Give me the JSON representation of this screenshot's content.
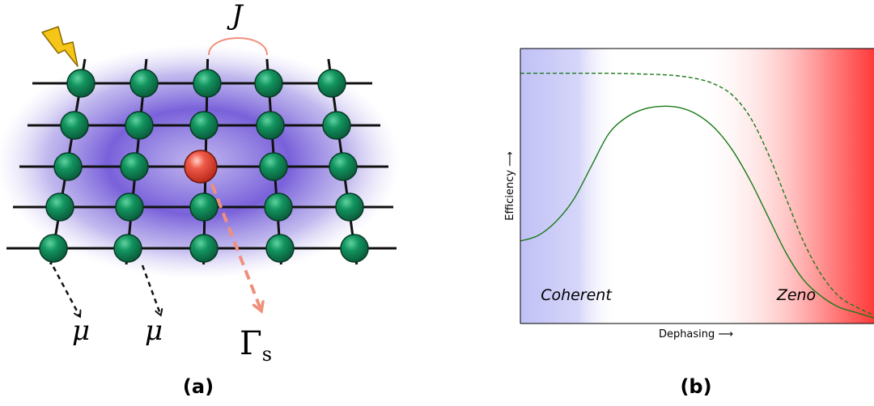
{
  "panel_a": {
    "caption": "(a)",
    "coupling_label": "J",
    "loss_label_1": "μ",
    "loss_label_2": "μ",
    "sink_label_main": "Γ",
    "sink_label_sub": "s",
    "colors": {
      "glow": "#6a4fd6",
      "node": "#0f8a5c",
      "sink_node": "#e8463a",
      "sink_arrow": "#f0907a",
      "coupling_arc": "#f0907a",
      "lightning": "#f5c518"
    },
    "lattice": {
      "rows": 5,
      "columns": 5
    }
  },
  "panel_b": {
    "caption": "(b)",
    "chart_data": {
      "type": "line",
      "xlabel": "Dephasing ⟶",
      "ylabel": "Efficiency ⟶",
      "regions": [
        {
          "text": "Coherent",
          "color": "#c8c8f8"
        },
        {
          "text": "Zeno",
          "color": "#ff6060"
        }
      ],
      "x": [
        0.0,
        0.05,
        0.1,
        0.15,
        0.2,
        0.25,
        0.3,
        0.35,
        0.4,
        0.45,
        0.5,
        0.55,
        0.6,
        0.65,
        0.7,
        0.75,
        0.8,
        0.85,
        0.9,
        0.95,
        1.0
      ],
      "series": [
        {
          "style": "dashed",
          "color": "#1a7a1a",
          "values": [
            0.91,
            0.91,
            0.91,
            0.91,
            0.91,
            0.91,
            0.909,
            0.907,
            0.905,
            0.9,
            0.89,
            0.87,
            0.83,
            0.75,
            0.62,
            0.46,
            0.3,
            0.18,
            0.1,
            0.06,
            0.03
          ]
        },
        {
          "style": "solid",
          "color": "#1a7a1a",
          "values": [
            0.3,
            0.32,
            0.37,
            0.45,
            0.57,
            0.69,
            0.75,
            0.78,
            0.79,
            0.785,
            0.76,
            0.71,
            0.63,
            0.52,
            0.39,
            0.26,
            0.16,
            0.1,
            0.06,
            0.04,
            0.02
          ]
        }
      ],
      "xlim": [
        0,
        1
      ],
      "ylim": [
        0,
        1
      ]
    }
  }
}
